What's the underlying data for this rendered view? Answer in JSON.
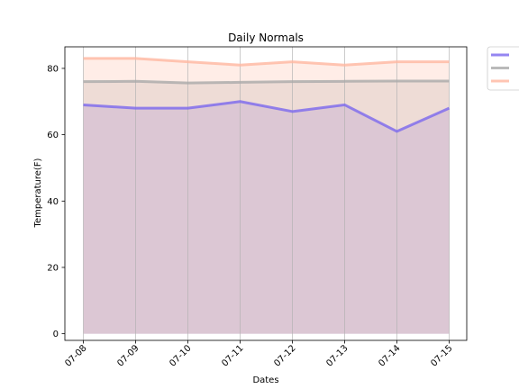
{
  "chart_data": {
    "type": "area",
    "title": "Daily Normals",
    "xlabel": "Dates",
    "ylabel": "Temperature(F)",
    "categories": [
      "07-08",
      "07-09",
      "07-10",
      "07-11",
      "07-12",
      "07-13",
      "07-14",
      "07-15"
    ],
    "ylim": [
      -2,
      86.5
    ],
    "yticks": [
      0,
      20,
      40,
      60,
      80
    ],
    "grid": "vertical",
    "legend_position": "outside-top-right",
    "series": [
      {
        "values": [
          69,
          68,
          68,
          70,
          67,
          69,
          61,
          68
        ],
        "color": "#7b68ee"
      },
      {
        "values": [
          76,
          76.1,
          75.6,
          75.8,
          76,
          76.1,
          76.2,
          76.2
        ],
        "color": "#a9a9a9"
      },
      {
        "values": [
          83,
          83,
          82,
          81,
          82,
          81,
          82,
          82
        ],
        "color": "#ffb6a0"
      }
    ]
  }
}
